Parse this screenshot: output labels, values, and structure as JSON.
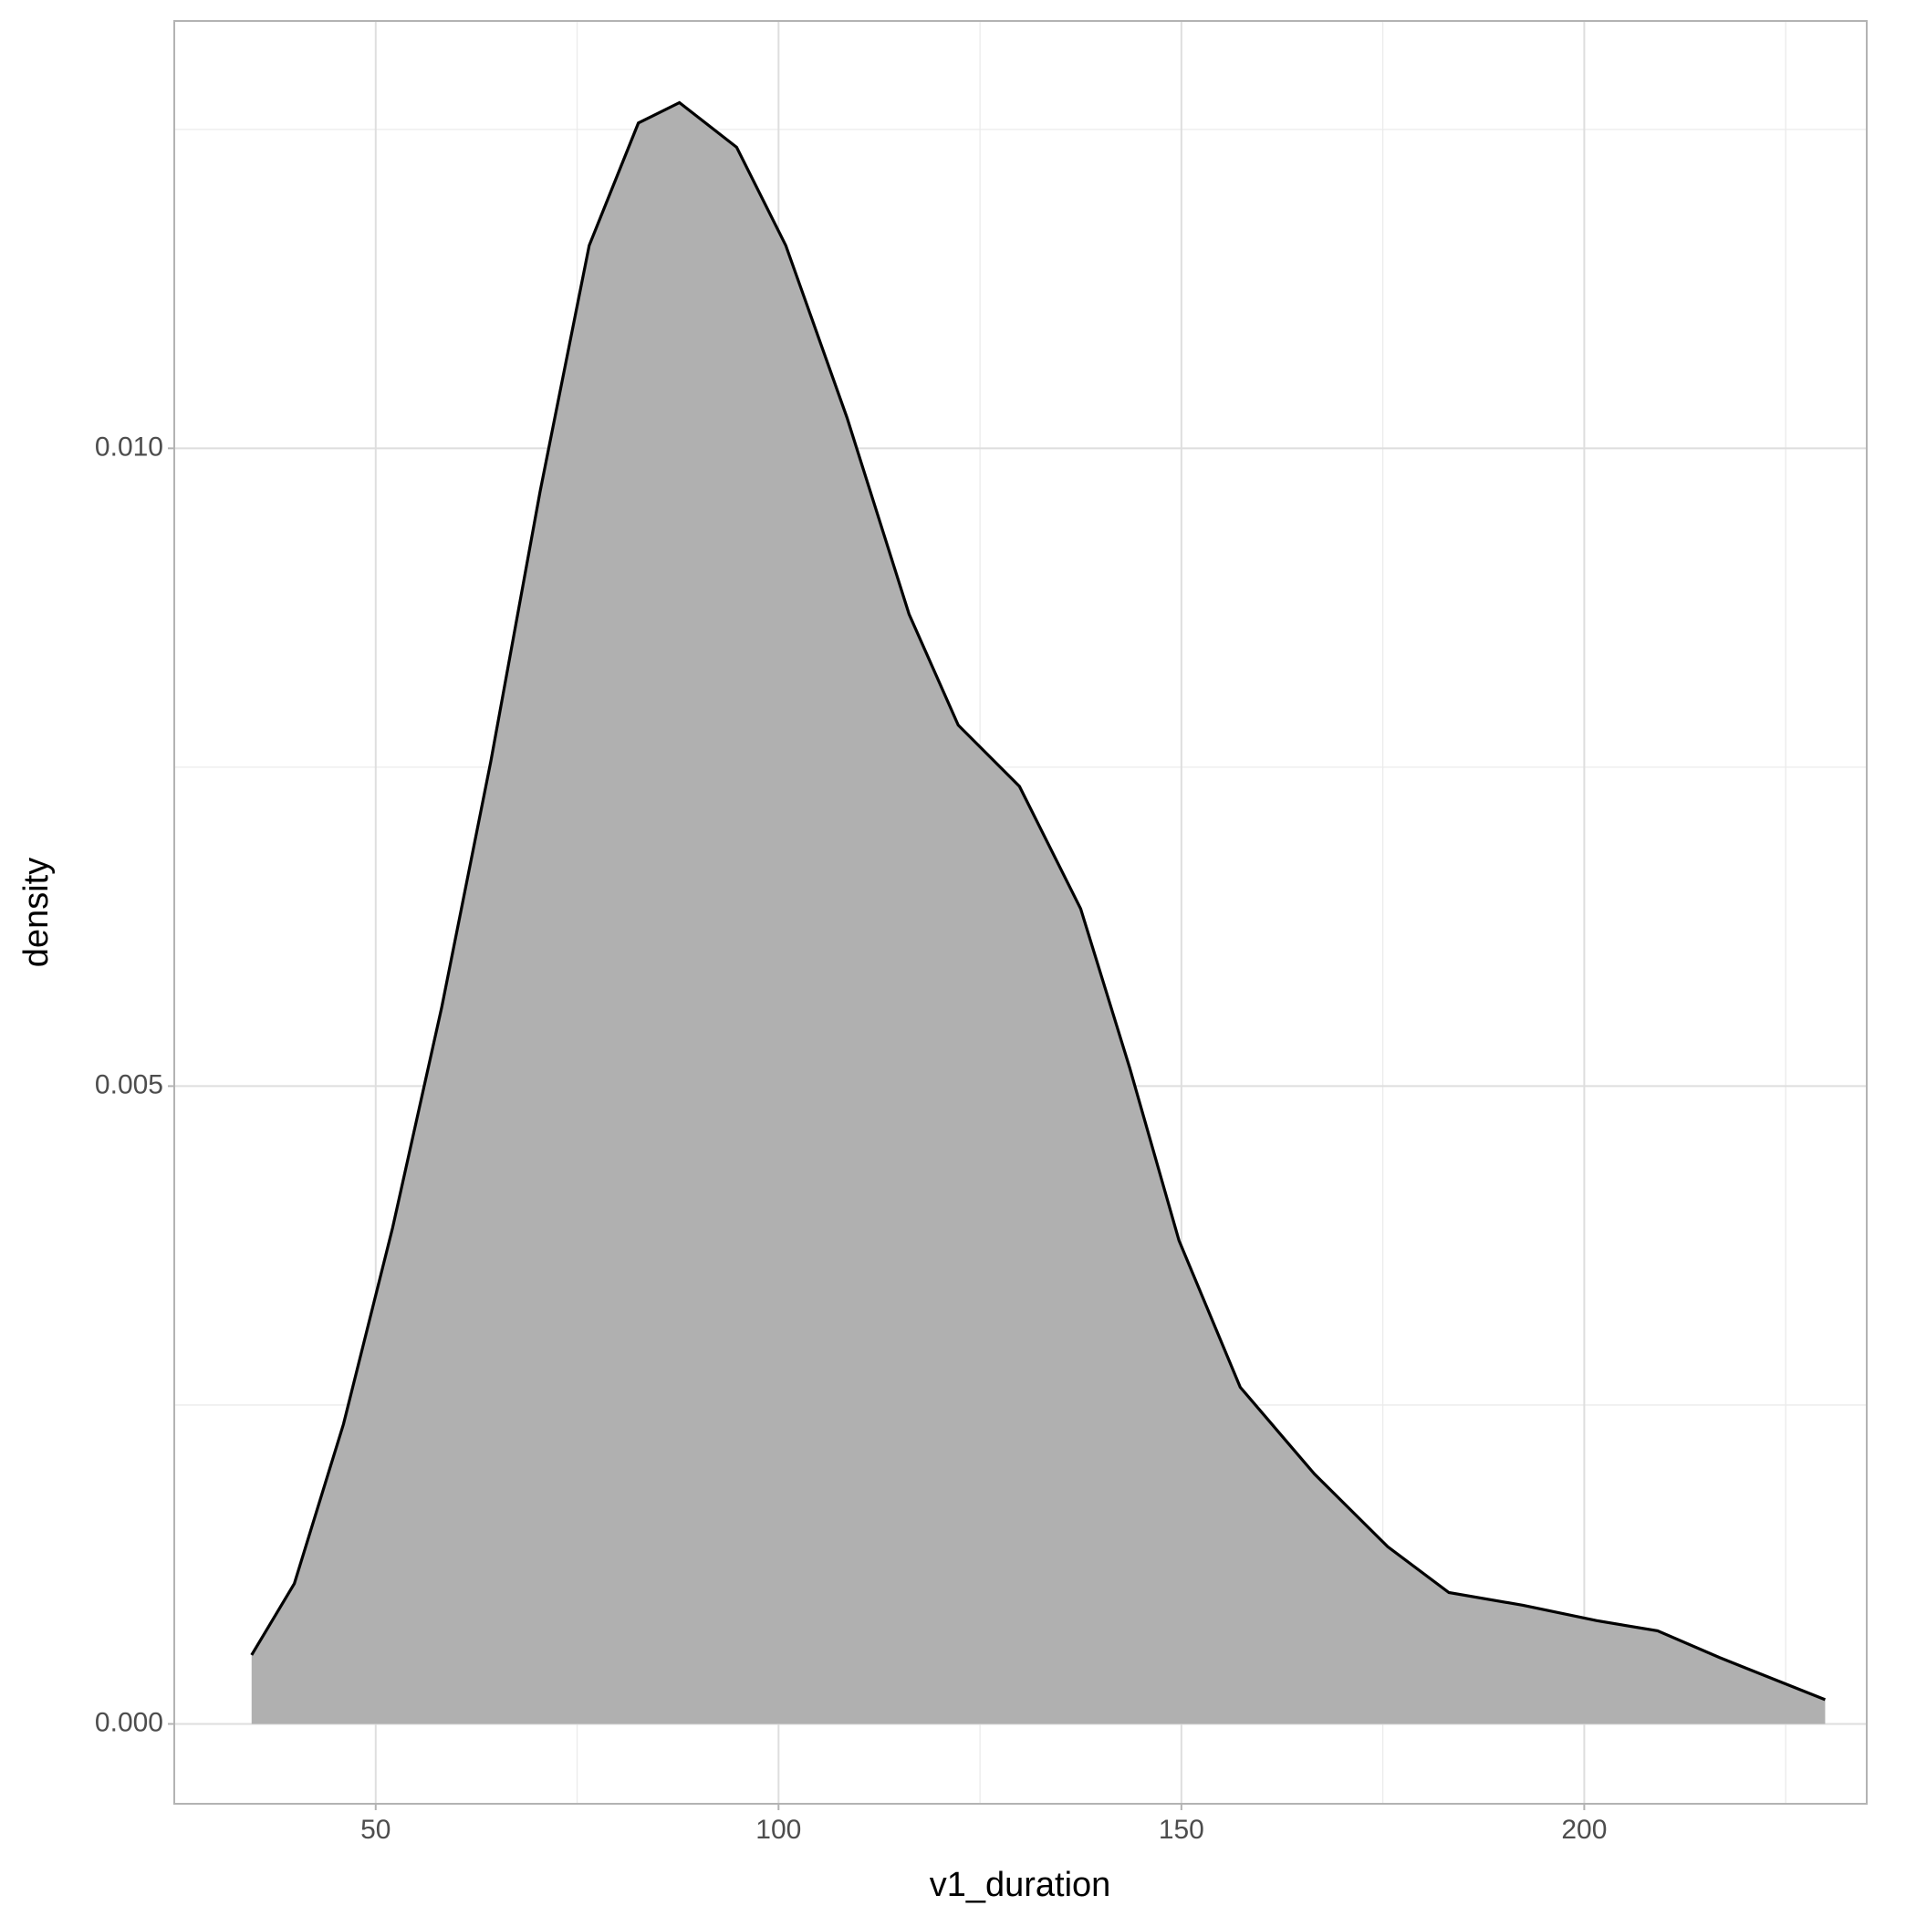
{
  "chart_data": {
    "type": "density",
    "x_label": "v1_duration",
    "y_label": "density",
    "x": [
      34.6,
      39.9,
      46.0,
      52.1,
      58.2,
      64.3,
      70.4,
      76.5,
      82.6,
      87.7,
      94.8,
      100.9,
      108.5,
      116.2,
      122.3,
      129.9,
      137.5,
      143.6,
      149.7,
      157.3,
      166.5,
      175.6,
      183.2,
      192.4,
      201.5,
      209.1,
      216.8,
      229.9
    ],
    "values": [
      0.00054,
      0.0011,
      0.00235,
      0.00389,
      0.00562,
      0.00755,
      0.00966,
      0.01159,
      0.01255,
      0.01271,
      0.01236,
      0.01159,
      0.01024,
      0.0087,
      0.00783,
      0.00735,
      0.00639,
      0.00514,
      0.00379,
      0.00264,
      0.00196,
      0.00139,
      0.00103,
      0.00093,
      0.00081,
      0.00073,
      0.00052,
      0.00019
    ],
    "fill": "#b0b0b0",
    "color": "#000000",
    "xlim": [
      25.0,
      235.06
    ],
    "ylim": [
      -0.000626,
      0.01335
    ],
    "xticks": [
      50,
      100,
      150,
      200
    ],
    "yticks": [
      {
        "value": 0,
        "label": "0.000"
      },
      {
        "value": 0.005,
        "label": "0.005"
      },
      {
        "value": 0.01,
        "label": "0.010"
      }
    ],
    "x_minor_grid": [
      75,
      125,
      175,
      225
    ],
    "y_minor_grid": [
      0.0025,
      0.0075,
      0.0125
    ],
    "grid": true
  }
}
